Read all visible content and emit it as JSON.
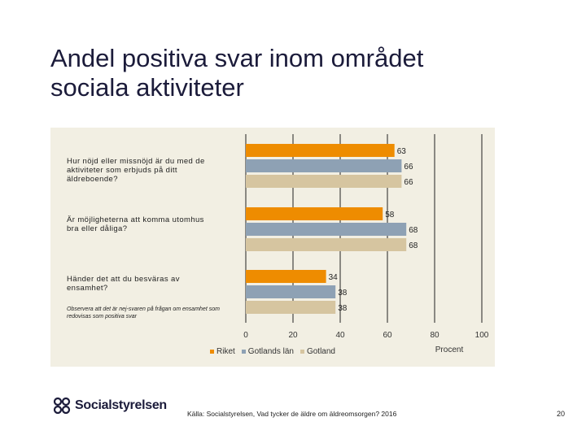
{
  "slide": {
    "title": "Andel positiva svar inom området\nsociala aktiviteter",
    "source": "Källa: Socialstyrelsen, Vad tycker de äldre om äldreomsorgen? 2016",
    "page_number": "20",
    "logo_text": "Socialstyrelsen"
  },
  "chart_data": {
    "type": "bar",
    "orientation": "horizontal",
    "categories": [
      "Hur nöjd eller missnöjd är du med de aktiviteter som erbjuds på ditt äldreboende?",
      "Är möjligheterna att komma utomhus bra eller dåliga?",
      "Händer det att du besväras av ensamhet?"
    ],
    "note": "Observera att det är nej-svaren på frågan om ensamhet som redovisas som positiva svar",
    "series": [
      {
        "name": "Riket",
        "color": "#ee8c00",
        "values": [
          63,
          58,
          34
        ]
      },
      {
        "name": "Gotlands län",
        "color": "#8ea1b4",
        "values": [
          66,
          68,
          38
        ]
      },
      {
        "name": "Gotland",
        "color": "#d6c5a0",
        "values": [
          66,
          68,
          38
        ]
      }
    ],
    "xlim": [
      0,
      100
    ],
    "xticks": [
      0,
      20,
      40,
      60,
      80,
      100
    ],
    "xlabel": "Procent",
    "grid": true,
    "legend": "bottom"
  }
}
